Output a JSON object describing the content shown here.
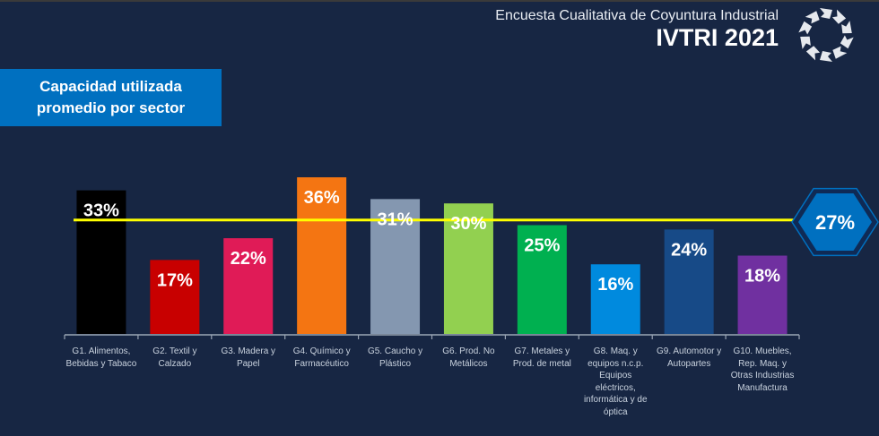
{
  "header": {
    "subtitle": "Encuesta Cualitativa de Coyuntura Industrial",
    "title": "IVTRI 2021",
    "logo_icon": "arrow-ring-logo-icon"
  },
  "title_box": {
    "line1": "Capacidad utilizada",
    "line2": "promedio por sector"
  },
  "chart_data": {
    "type": "bar",
    "title": "Capacidad utilizada promedio por sector",
    "xlabel": "",
    "ylabel": "",
    "ylim": [
      0,
      36
    ],
    "grid": false,
    "categories": [
      "G1. Alimentos, Bebidas y Tabaco",
      "G2. Textil y Calzado",
      "G3. Madera y Papel",
      "G4. Químico y Farmacéutico",
      "G5. Caucho y Plástico",
      "G6. Prod. No Metálicos",
      "G7. Metales y Prod. de metal",
      "G8. Maq. y equipos n.c.p. Equipos eléctricos, informática y de óptica",
      "G9. Automotor y Autopartes",
      "G10. Muebles, Rep. Maq. y Otras Industrias Manufactura"
    ],
    "category_lines": [
      [
        "G1. Alimentos,",
        "Bebidas y Tabaco"
      ],
      [
        "G2. Textil y",
        "Calzado"
      ],
      [
        "G3. Madera y",
        "Papel"
      ],
      [
        "G4. Químico y",
        "Farmacéutico"
      ],
      [
        "G5. Caucho y",
        "Plástico"
      ],
      [
        "G6. Prod. No",
        "Metálicos"
      ],
      [
        "G7. Metales y",
        "Prod. de metal"
      ],
      [
        "G8. Maq. y",
        "equipos n.c.p.",
        "Equipos",
        "eléctricos,",
        "informática y de",
        "óptica"
      ],
      [
        "G9. Automotor y",
        "Autopartes"
      ],
      [
        "G10. Muebles,",
        "Rep. Maq. y",
        "Otras Industrias",
        "Manufactura"
      ]
    ],
    "values": [
      33,
      17,
      22,
      36,
      31,
      30,
      25,
      16,
      24,
      18
    ],
    "value_labels": [
      "33%",
      "17%",
      "22%",
      "36%",
      "31%",
      "30%",
      "25%",
      "16%",
      "24%",
      "18%"
    ],
    "colors": [
      "#000000",
      "#c80000",
      "#e01b57",
      "#f47512",
      "#8497b0",
      "#92d050",
      "#00b050",
      "#008ade",
      "#174a87",
      "#7030a0"
    ],
    "average": {
      "value": 27,
      "label": "27%",
      "line_color": "#ffff00",
      "badge_color": "#0070c0"
    }
  }
}
